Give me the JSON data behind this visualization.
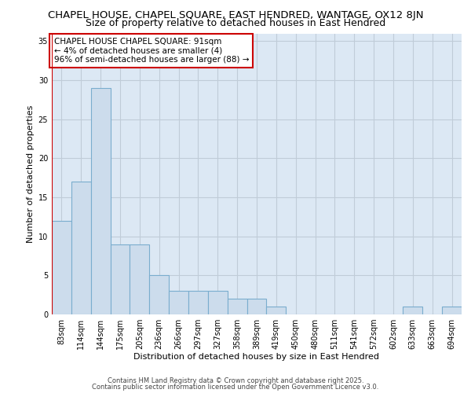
{
  "title1": "CHAPEL HOUSE, CHAPEL SQUARE, EAST HENDRED, WANTAGE, OX12 8JN",
  "title2": "Size of property relative to detached houses in East Hendred",
  "xlabel": "Distribution of detached houses by size in East Hendred",
  "ylabel": "Number of detached properties",
  "categories": [
    "83sqm",
    "114sqm",
    "144sqm",
    "175sqm",
    "205sqm",
    "236sqm",
    "266sqm",
    "297sqm",
    "327sqm",
    "358sqm",
    "389sqm",
    "419sqm",
    "450sqm",
    "480sqm",
    "511sqm",
    "541sqm",
    "572sqm",
    "602sqm",
    "633sqm",
    "663sqm",
    "694sqm"
  ],
  "values": [
    12,
    17,
    29,
    9,
    9,
    5,
    3,
    3,
    3,
    2,
    2,
    1,
    0,
    0,
    0,
    0,
    0,
    0,
    1,
    0,
    1
  ],
  "bar_color": "#ccdcec",
  "bar_edge_color": "#7aadce",
  "highlight_line_color": "#cc0000",
  "annotation_text": "CHAPEL HOUSE CHAPEL SQUARE: 91sqm\n← 4% of detached houses are smaller (4)\n96% of semi-detached houses are larger (88) →",
  "annotation_box_color": "#ffffff",
  "annotation_box_edge": "#cc0000",
  "ylim": [
    0,
    36
  ],
  "yticks": [
    0,
    5,
    10,
    15,
    20,
    25,
    30,
    35
  ],
  "grid_color": "#c0ccd8",
  "bg_color": "#dce8f4",
  "footer1": "Contains HM Land Registry data © Crown copyright and database right 2025.",
  "footer2": "Contains public sector information licensed under the Open Government Licence v3.0.",
  "title1_fontsize": 9.5,
  "title2_fontsize": 9,
  "axis_label_fontsize": 8,
  "tick_fontsize": 7,
  "annotation_fontsize": 7.5,
  "footer_fontsize": 6
}
